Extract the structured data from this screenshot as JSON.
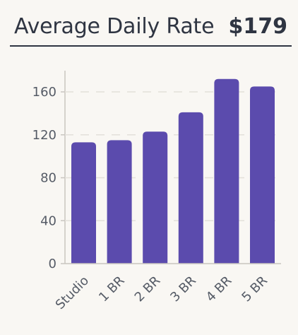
{
  "header": {
    "title": "Average Daily Rate",
    "value": "$179"
  },
  "colors": {
    "bar": "#5b4bad",
    "text": "#2f3542",
    "grid": "#e3e0da",
    "axis": "#c9c6c0"
  },
  "chart_data": {
    "type": "bar",
    "categories": [
      "Studio",
      "1 BR",
      "2 BR",
      "3 BR",
      "4 BR",
      "5 BR"
    ],
    "values": [
      113,
      115,
      123,
      141,
      172,
      165
    ],
    "ylim": [
      0,
      180
    ],
    "yticks": [
      0,
      40,
      80,
      120,
      160
    ],
    "ytick_labels": [
      "0",
      "40",
      "80",
      "120",
      "160"
    ],
    "grid": true,
    "xlabel": "",
    "ylabel": ""
  }
}
